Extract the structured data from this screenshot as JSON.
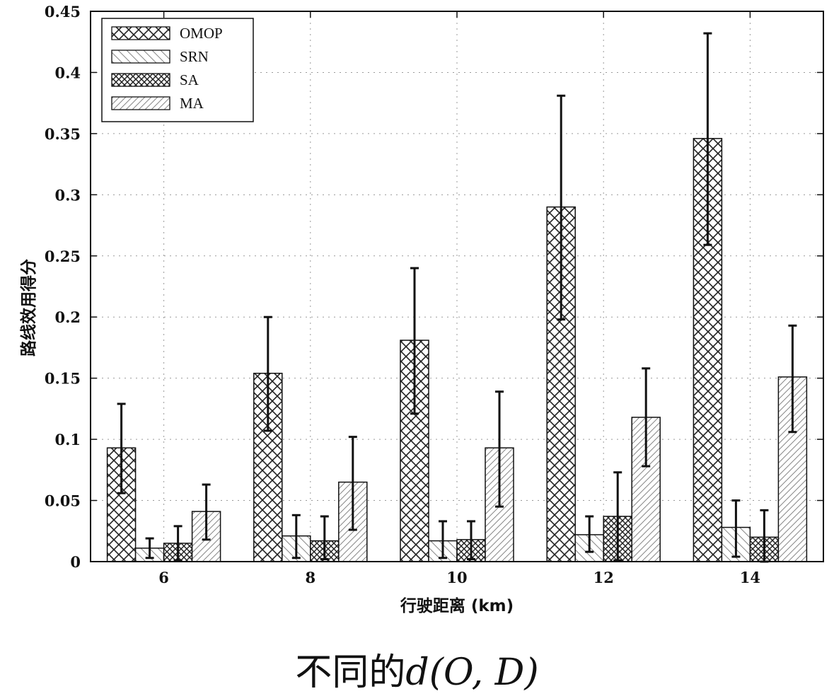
{
  "chart_data": {
    "type": "bar",
    "categories": [
      "6",
      "8",
      "10",
      "12",
      "14"
    ],
    "series": [
      {
        "name": "OMOP",
        "pattern": "crosshatch",
        "values": [
          0.093,
          0.154,
          0.181,
          0.29,
          0.346
        ],
        "err_low": [
          0.056,
          0.107,
          0.121,
          0.198,
          0.259
        ],
        "err_high": [
          0.129,
          0.2,
          0.24,
          0.381,
          0.432
        ]
      },
      {
        "name": "SRN",
        "pattern": "backslash",
        "values": [
          0.011,
          0.021,
          0.017,
          0.022,
          0.028
        ],
        "err_low": [
          0.003,
          0.003,
          0.003,
          0.008,
          0.004
        ],
        "err_high": [
          0.019,
          0.038,
          0.033,
          0.037,
          0.05
        ]
      },
      {
        "name": "SA",
        "pattern": "dense-crosshatch",
        "values": [
          0.015,
          0.017,
          0.018,
          0.037,
          0.02
        ],
        "err_low": [
          0.001,
          0.002,
          0.002,
          0.001,
          0.0
        ],
        "err_high": [
          0.029,
          0.037,
          0.033,
          0.073,
          0.042
        ]
      },
      {
        "name": "MA",
        "pattern": "forward-slash",
        "values": [
          0.041,
          0.065,
          0.093,
          0.118,
          0.151
        ],
        "err_low": [
          0.018,
          0.026,
          0.045,
          0.078,
          0.106
        ],
        "err_high": [
          0.063,
          0.102,
          0.139,
          0.158,
          0.193
        ]
      }
    ],
    "xlabel": "行驶距离 (km)",
    "ylabel": "路线效用得分",
    "ylim": [
      0,
      0.45
    ],
    "yticks": [
      "0",
      "0.05",
      "0.1",
      "0.15",
      "0.2",
      "0.25",
      "0.3",
      "0.35",
      "0.4",
      "0.45"
    ],
    "grid": true,
    "legend_position": "top-left"
  },
  "caption": {
    "prefix": "不同的",
    "math": "d(O, D)"
  }
}
